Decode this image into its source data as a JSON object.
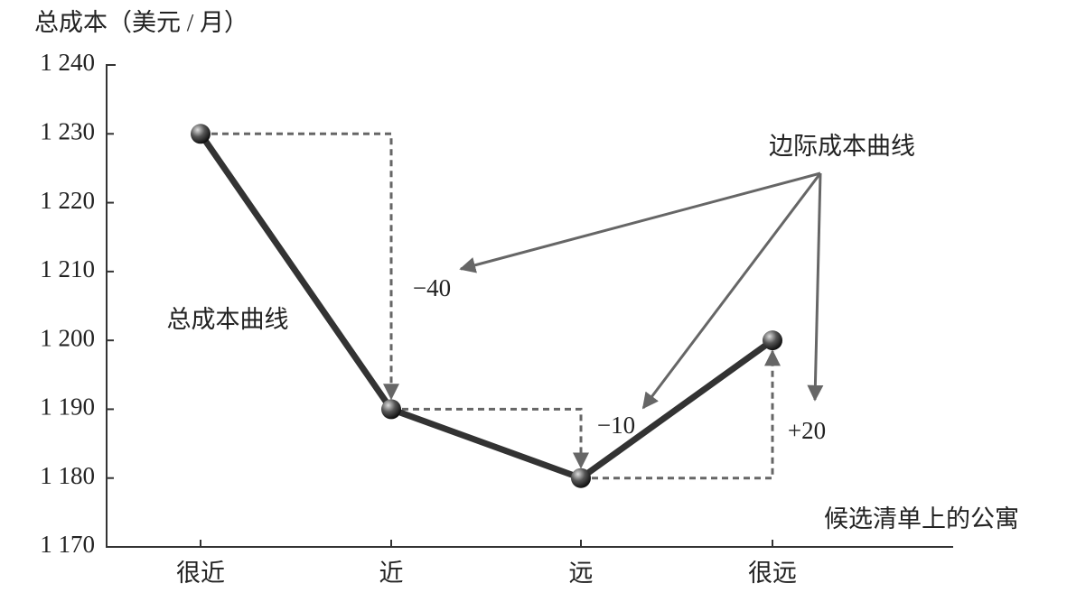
{
  "chart_data": {
    "type": "line",
    "y_axis_label": "总成本（美元 / 月）",
    "x_axis_label": "候选清单上的公寓",
    "categories": [
      "很近",
      "近",
      "远",
      "很远"
    ],
    "series": [
      {
        "name": "总成本曲线",
        "color": "#333333",
        "values": [
          1230,
          1190,
          1180,
          1200
        ]
      }
    ],
    "marginal_cost_label": "边际成本曲线",
    "marginal_labels": [
      "−40",
      "−10",
      "+20"
    ],
    "ylim": [
      1170,
      1240
    ],
    "yticks": [
      {
        "value": 1170,
        "label": "1 170"
      },
      {
        "value": 1180,
        "label": "1 180"
      },
      {
        "value": 1190,
        "label": "1 190"
      },
      {
        "value": 1200,
        "label": "1 200"
      },
      {
        "value": 1210,
        "label": "1 210"
      },
      {
        "value": 1220,
        "label": "1 220"
      },
      {
        "value": 1230,
        "label": "1 230"
      },
      {
        "value": 1240,
        "label": "1 240"
      }
    ]
  }
}
